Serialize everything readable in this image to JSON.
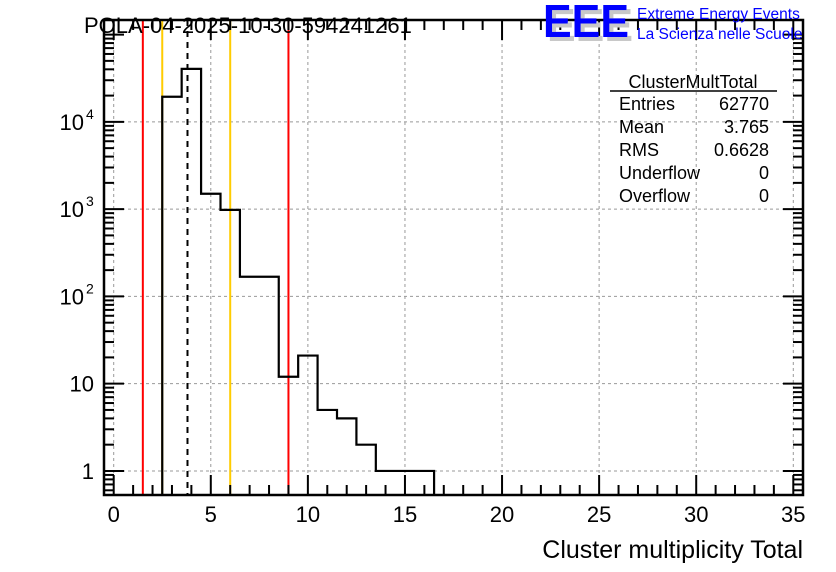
{
  "header": {
    "title": "POLA-04-2025-10-30-594241261",
    "logo_text": "EEE",
    "logo_line1": "Extreme Energy Events",
    "logo_line2": "La Scienza nelle Scuole"
  },
  "stats": {
    "title": "ClusterMultTotal",
    "rows": [
      {
        "label": "Entries",
        "value": "62770"
      },
      {
        "label": "Mean",
        "value": "3.765"
      },
      {
        "label": "RMS",
        "value": "0.6628"
      },
      {
        "label": "Underflow",
        "value": "0"
      },
      {
        "label": "Overflow",
        "value": "0"
      }
    ]
  },
  "colors": {
    "red": "#ff0000",
    "orange": "#ffcc00",
    "hist": "#000000",
    "logo": "#0000ff",
    "grid": "#999999"
  },
  "chart_data": {
    "type": "bar",
    "style": "step-histogram",
    "title": "POLA-04-2025-10-30-594241261",
    "xlabel": "Cluster multiplicity Total",
    "ylabel": "",
    "xlim": [
      -0.5,
      35.5
    ],
    "ylim": [
      0.53,
      147000
    ],
    "yscale": "log",
    "grid": true,
    "bin_width": 1,
    "bin_centers": [
      3,
      4,
      5,
      6,
      7,
      8,
      9,
      10,
      11,
      12,
      13,
      14,
      15,
      16
    ],
    "values": [
      19400,
      40500,
      1500,
      980,
      168,
      168,
      12,
      21,
      5,
      4,
      2,
      1,
      1,
      1
    ],
    "xticks": [
      0,
      5,
      10,
      15,
      20,
      25,
      30,
      35
    ],
    "xtick_labels": [
      "0",
      "5",
      "10",
      "15",
      "20",
      "25",
      "30",
      "35"
    ],
    "yticks": [
      1,
      10,
      100,
      1000,
      10000
    ],
    "ytick_labels": [
      {
        "base": "1",
        "exp": ""
      },
      {
        "base": "10",
        "exp": ""
      },
      {
        "base": "10",
        "exp": "2"
      },
      {
        "base": "10",
        "exp": "3"
      },
      {
        "base": "10",
        "exp": "4"
      }
    ],
    "vlines": [
      {
        "x": 1.5,
        "color": "red",
        "style": "solid"
      },
      {
        "x": 2.5,
        "color": "orange",
        "style": "solid"
      },
      {
        "x": 3.8,
        "color": "black",
        "style": "dashed"
      },
      {
        "x": 6.0,
        "color": "orange",
        "style": "solid"
      },
      {
        "x": 9.0,
        "color": "red",
        "style": "solid"
      }
    ]
  }
}
